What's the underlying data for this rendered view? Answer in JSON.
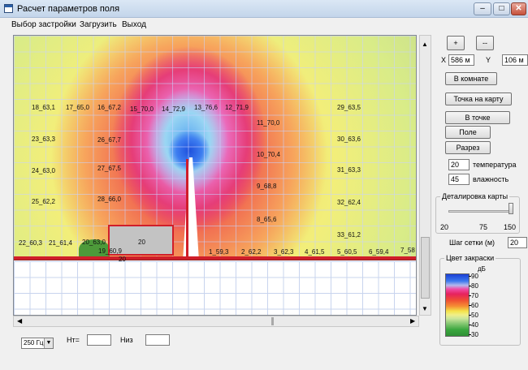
{
  "window": {
    "title": "Расчет параметров поля"
  },
  "menu": [
    {
      "label": "Выбор застройки"
    },
    {
      "label": "Загрузить"
    },
    {
      "label": "Выход"
    }
  ],
  "map_labels": [
    "18_63,1",
    "17_65,0",
    "16_67,2",
    "15_70,0",
    "14_72,9",
    "13_76,6",
    "12_71,9",
    "29_63,5",
    "11_70,0",
    "23_63,3",
    "26_67,7",
    "30_63,6",
    "10_70,4",
    "24_63,0",
    "27_67,5",
    "31_63,3",
    "9_68,8",
    "25_62,2",
    "28_66,0",
    "32_62,4",
    "8_65,6",
    "33_61,2",
    "22_60,3",
    "21_61,4",
    "20_63,0",
    "20",
    "19_60,9",
    "1_59,3",
    "2_62,2",
    "3_62,3",
    "4_61,5",
    "5_60,5",
    "6_59,4",
    "7_58",
    "20"
  ],
  "controls": {
    "plus_label": "+",
    "minus_label": "--",
    "x_label": "X",
    "x_value": "586 м",
    "y_label": "Y",
    "y_value": "106 м",
    "room_button": "В комнате",
    "point_on_map_button": "Точка на карту",
    "at_point_button": "В точке",
    "field_button": "Поле",
    "section_button": "Разрез",
    "temperature_value": "20",
    "temperature_label": "температура",
    "humidity_value": "45",
    "humidity_label": "влажность",
    "detail_group_title": "Деталировка карты",
    "detail_min": "20",
    "detail_mid": "75",
    "detail_max": "150",
    "detail_level": 1.0,
    "grid_step_label": "Шаг сетки (м)",
    "grid_step_value": "20"
  },
  "legend": {
    "title": "Цвет закраски",
    "unit": "дБ",
    "ticks": [
      "90",
      "80",
      "70",
      "60",
      "50",
      "40",
      "30"
    ]
  },
  "bottom": {
    "frequency_value": "250 Гц",
    "ht_label": "Нт=",
    "ht_value": "",
    "niz_label": "Низ",
    "niz_value": ""
  },
  "colors": {
    "wall": "#d01e2a",
    "max": "#1b3fd4",
    "min": "#2f8f35"
  }
}
